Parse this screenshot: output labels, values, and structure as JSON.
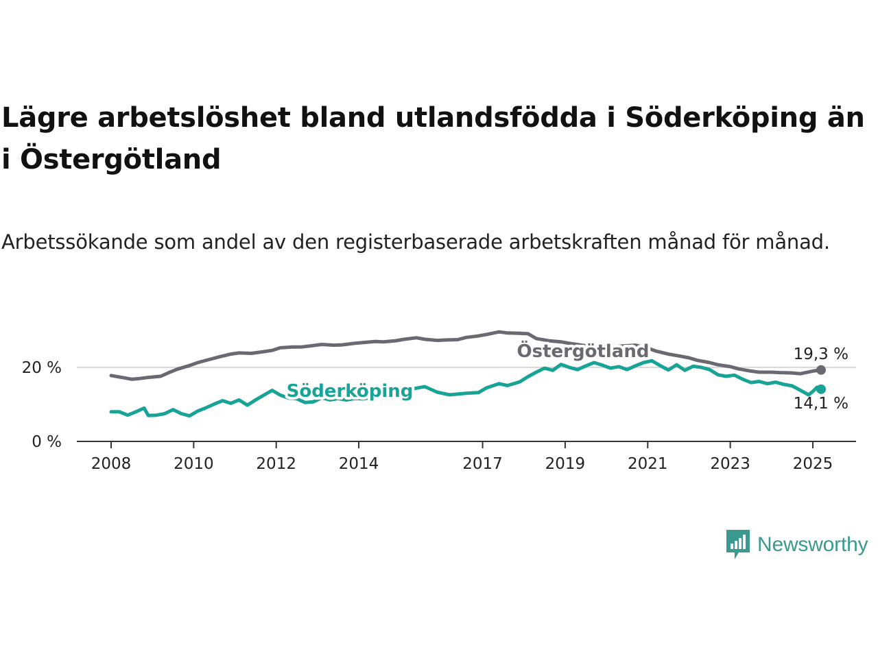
{
  "title": "Lägre arbetslöshet bland utlandsfödda i Söderköping än i Östergötland",
  "subtitle": "Arbetssökande som andel av den registerbaserade arbetskraften månad för månad.",
  "brand": {
    "name": "Newsworthy",
    "color": "#3a9a8f",
    "icon": "newsworthy-bar-chart-icon"
  },
  "colors": {
    "ostergotland": "#6b6872",
    "soderkoping": "#17a497",
    "axis": "#333333",
    "grid": "#d9d9d9"
  },
  "chart_data": {
    "type": "line",
    "xlim": [
      2008.0,
      2025.2
    ],
    "ylim": [
      0,
      30
    ],
    "grid": true,
    "y_ticks": [
      {
        "value": 0,
        "label": "0 %"
      },
      {
        "value": 20,
        "label": "20 %"
      }
    ],
    "x_ticks": [
      {
        "value": 2008.0,
        "label": "2008"
      },
      {
        "value": 2010.0,
        "label": "2010"
      },
      {
        "value": 2012.0,
        "label": "2012"
      },
      {
        "value": 2014.0,
        "label": "2014"
      },
      {
        "value": 2017.0,
        "label": "2017"
      },
      {
        "value": 2019.0,
        "label": "2019"
      },
      {
        "value": 2021.0,
        "label": "2021"
      },
      {
        "value": 2023.0,
        "label": "2023"
      },
      {
        "value": 2025.0,
        "label": "2025"
      }
    ],
    "series": [
      {
        "name": "Östergötland",
        "color": "#6b6872",
        "end_label": "19,3 %",
        "end_value": 19.3,
        "points": [
          [
            2008.0,
            17.8
          ],
          [
            2008.3,
            17.2
          ],
          [
            2008.5,
            16.8
          ],
          [
            2008.7,
            17.0
          ],
          [
            2008.9,
            17.3
          ],
          [
            2009.2,
            17.6
          ],
          [
            2009.4,
            18.6
          ],
          [
            2009.6,
            19.5
          ],
          [
            2009.9,
            20.5
          ],
          [
            2010.1,
            21.3
          ],
          [
            2010.4,
            22.2
          ],
          [
            2010.6,
            22.8
          ],
          [
            2010.9,
            23.6
          ],
          [
            2011.1,
            23.9
          ],
          [
            2011.4,
            23.8
          ],
          [
            2011.6,
            24.1
          ],
          [
            2011.9,
            24.6
          ],
          [
            2012.1,
            25.3
          ],
          [
            2012.4,
            25.5
          ],
          [
            2012.6,
            25.5
          ],
          [
            2012.9,
            25.9
          ],
          [
            2013.1,
            26.2
          ],
          [
            2013.4,
            26.0
          ],
          [
            2013.6,
            26.1
          ],
          [
            2013.9,
            26.5
          ],
          [
            2014.1,
            26.7
          ],
          [
            2014.4,
            27.0
          ],
          [
            2014.6,
            26.9
          ],
          [
            2014.9,
            27.2
          ],
          [
            2015.1,
            27.6
          ],
          [
            2015.4,
            28.0
          ],
          [
            2015.6,
            27.6
          ],
          [
            2015.9,
            27.3
          ],
          [
            2016.1,
            27.4
          ],
          [
            2016.4,
            27.5
          ],
          [
            2016.6,
            28.1
          ],
          [
            2016.9,
            28.5
          ],
          [
            2017.1,
            28.9
          ],
          [
            2017.4,
            29.6
          ],
          [
            2017.6,
            29.3
          ],
          [
            2017.9,
            29.2
          ],
          [
            2018.1,
            29.1
          ],
          [
            2018.3,
            27.8
          ],
          [
            2018.6,
            27.2
          ],
          [
            2018.9,
            26.9
          ],
          [
            2019.1,
            26.5
          ],
          [
            2019.4,
            26.0
          ],
          [
            2019.6,
            25.7
          ],
          [
            2019.9,
            25.5
          ],
          [
            2020.2,
            25.6
          ],
          [
            2020.4,
            25.8
          ],
          [
            2020.7,
            26.0
          ],
          [
            2021.0,
            25.2
          ],
          [
            2021.2,
            24.4
          ],
          [
            2021.5,
            23.6
          ],
          [
            2021.7,
            23.2
          ],
          [
            2022.0,
            22.6
          ],
          [
            2022.2,
            21.9
          ],
          [
            2022.5,
            21.3
          ],
          [
            2022.7,
            20.7
          ],
          [
            2023.0,
            20.2
          ],
          [
            2023.2,
            19.6
          ],
          [
            2023.5,
            19.0
          ],
          [
            2023.7,
            18.7
          ],
          [
            2024.0,
            18.7
          ],
          [
            2024.2,
            18.6
          ],
          [
            2024.5,
            18.5
          ],
          [
            2024.7,
            18.3
          ],
          [
            2025.0,
            19.0
          ],
          [
            2025.2,
            19.3
          ]
        ]
      },
      {
        "name": "Söderköping",
        "color": "#17a497",
        "end_label": "14,1 %",
        "end_value": 14.1,
        "points": [
          [
            2008.0,
            8.0
          ],
          [
            2008.2,
            8.0
          ],
          [
            2008.4,
            7.1
          ],
          [
            2008.6,
            8.0
          ],
          [
            2008.8,
            9.0
          ],
          [
            2008.9,
            7.0
          ],
          [
            2009.1,
            7.1
          ],
          [
            2009.3,
            7.5
          ],
          [
            2009.5,
            8.6
          ],
          [
            2009.7,
            7.5
          ],
          [
            2009.9,
            6.9
          ],
          [
            2010.1,
            8.2
          ],
          [
            2010.3,
            9.1
          ],
          [
            2010.5,
            10.1
          ],
          [
            2010.7,
            11.0
          ],
          [
            2010.9,
            10.3
          ],
          [
            2011.1,
            11.2
          ],
          [
            2011.3,
            9.8
          ],
          [
            2011.5,
            11.2
          ],
          [
            2011.7,
            12.5
          ],
          [
            2011.9,
            13.8
          ],
          [
            2012.1,
            12.5
          ],
          [
            2012.3,
            11.7
          ],
          [
            2012.5,
            11.5
          ],
          [
            2012.7,
            10.5
          ],
          [
            2012.9,
            10.7
          ],
          [
            2013.1,
            11.8
          ],
          [
            2013.3,
            11.2
          ],
          [
            2013.5,
            11.6
          ],
          [
            2013.7,
            11.2
          ],
          [
            2013.9,
            11.6
          ],
          [
            2014.1,
            11.5
          ],
          [
            2014.3,
            11.8
          ],
          [
            2014.5,
            12.3
          ],
          [
            2014.7,
            13.0
          ],
          [
            2014.9,
            14.0
          ],
          [
            2015.1,
            14.6
          ],
          [
            2015.3,
            14.2
          ],
          [
            2015.6,
            14.8
          ],
          [
            2015.9,
            13.3
          ],
          [
            2016.2,
            12.6
          ],
          [
            2016.4,
            12.8
          ],
          [
            2016.6,
            13.0
          ],
          [
            2016.9,
            13.2
          ],
          [
            2017.1,
            14.5
          ],
          [
            2017.4,
            15.6
          ],
          [
            2017.6,
            15.1
          ],
          [
            2017.9,
            16.1
          ],
          [
            2018.1,
            17.5
          ],
          [
            2018.3,
            18.7
          ],
          [
            2018.5,
            19.8
          ],
          [
            2018.7,
            19.2
          ],
          [
            2018.9,
            20.8
          ],
          [
            2019.1,
            20.0
          ],
          [
            2019.3,
            19.4
          ],
          [
            2019.5,
            20.4
          ],
          [
            2019.7,
            21.3
          ],
          [
            2019.9,
            20.6
          ],
          [
            2020.1,
            19.8
          ],
          [
            2020.3,
            20.2
          ],
          [
            2020.5,
            19.4
          ],
          [
            2020.7,
            20.4
          ],
          [
            2020.9,
            21.3
          ],
          [
            2021.1,
            21.8
          ],
          [
            2021.3,
            20.5
          ],
          [
            2021.5,
            19.3
          ],
          [
            2021.7,
            20.7
          ],
          [
            2021.9,
            19.2
          ],
          [
            2022.1,
            20.3
          ],
          [
            2022.3,
            20.0
          ],
          [
            2022.5,
            19.4
          ],
          [
            2022.7,
            18.0
          ],
          [
            2022.9,
            17.6
          ],
          [
            2023.1,
            17.9
          ],
          [
            2023.3,
            16.8
          ],
          [
            2023.5,
            15.9
          ],
          [
            2023.7,
            16.2
          ],
          [
            2023.9,
            15.6
          ],
          [
            2024.1,
            16.0
          ],
          [
            2024.3,
            15.4
          ],
          [
            2024.5,
            15.0
          ],
          [
            2024.7,
            13.8
          ],
          [
            2024.9,
            12.6
          ],
          [
            2025.0,
            13.5
          ],
          [
            2025.1,
            14.6
          ],
          [
            2025.2,
            14.1
          ]
        ]
      }
    ]
  }
}
